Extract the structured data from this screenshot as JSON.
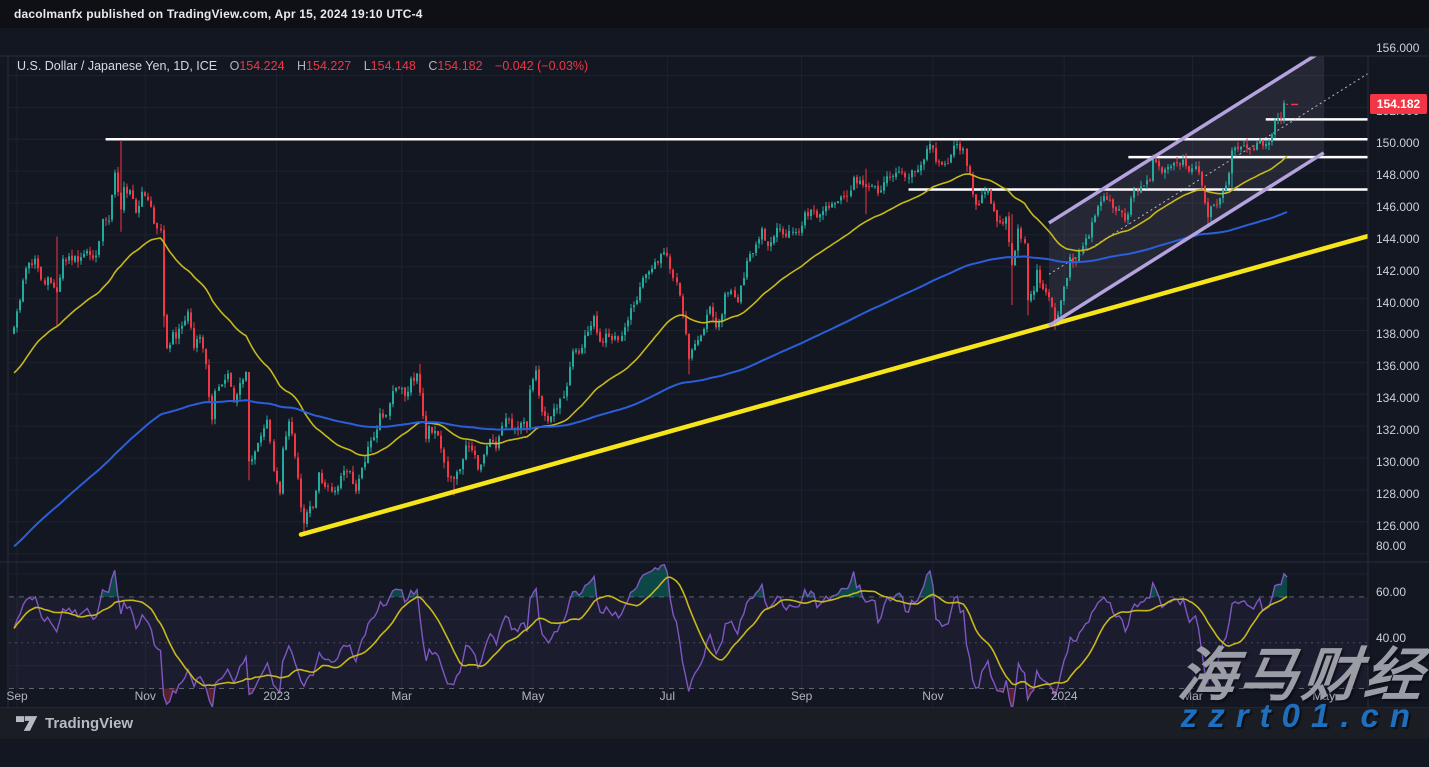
{
  "publisher_bar": {
    "text": "dacolmanfx published on TradingView.com, Apr 15, 2024 19:10 UTC-4"
  },
  "legend": {
    "symbol": "U.S. Dollar / Japanese Yen, 1D, ICE",
    "o_label": "O",
    "o_value": "154.224",
    "h_label": "H",
    "h_value": "154.227",
    "l_label": "L",
    "l_value": "154.148",
    "c_label": "C",
    "c_value": "154.182",
    "change": "−0.042 (−0.03%)"
  },
  "price_axis": {
    "ticks": [
      {
        "label": "156.000",
        "value": 156
      },
      {
        "label": "152.000",
        "value": 152
      },
      {
        "label": "150.000",
        "value": 150
      },
      {
        "label": "148.000",
        "value": 148
      },
      {
        "label": "146.000",
        "value": 146
      },
      {
        "label": "144.000",
        "value": 144
      },
      {
        "label": "142.000",
        "value": 142
      },
      {
        "label": "140.000",
        "value": 140
      },
      {
        "label": "138.000",
        "value": 138
      },
      {
        "label": "136.000",
        "value": 136
      },
      {
        "label": "134.000",
        "value": 134
      },
      {
        "label": "132.000",
        "value": 132
      },
      {
        "label": "130.000",
        "value": 130
      },
      {
        "label": "128.000",
        "value": 128
      },
      {
        "label": "126.000",
        "value": 126
      }
    ],
    "badge": {
      "text": "154.182",
      "value": 154.182,
      "bg": "#f23645"
    }
  },
  "rsi_axis": {
    "ticks": [
      {
        "label": "80.00",
        "value": 80
      },
      {
        "label": "60.00",
        "value": 60
      },
      {
        "label": "40.00",
        "value": 40
      }
    ]
  },
  "time_axis": {
    "labels": [
      {
        "text": "Sep",
        "day": 1
      },
      {
        "text": "Nov",
        "day": 43
      },
      {
        "text": "2023",
        "day": 86
      },
      {
        "text": "Mar",
        "day": 127
      },
      {
        "text": "May",
        "day": 170
      },
      {
        "text": "Jul",
        "day": 214
      },
      {
        "text": "Sep",
        "day": 258
      },
      {
        "text": "Nov",
        "day": 301
      },
      {
        "text": "2024",
        "day": 344
      },
      {
        "text": "Mar",
        "day": 386
      },
      {
        "text": "May",
        "day": 429
      }
    ]
  },
  "footer": {
    "brand": "TradingView"
  },
  "watermark": {
    "line1": "海马财经",
    "line2": "zzrt01.cn",
    "line1_color": "#9a9da6",
    "line2_color": "#1e6fbe"
  },
  "chart_data": {
    "type": "candlestick",
    "title": "U.S. Dollar / Japanese Yen, 1D, ICE",
    "ohlc_current": {
      "open": 154.224,
      "high": 154.227,
      "low": 154.148,
      "close": 154.182,
      "change": -0.042,
      "change_pct": -0.03
    },
    "ylim_main": [
      125.5,
      157.2
    ],
    "main_ticks": [
      156,
      152,
      150,
      148,
      146,
      144,
      142,
      140,
      138,
      136,
      134,
      132,
      130,
      128,
      126
    ],
    "main_grid_extra": [
      154
    ],
    "days_total": 418,
    "noise_seed": 20240415,
    "price_waypoints": [
      [
        0,
        140.2
      ],
      [
        4,
        143.9
      ],
      [
        7,
        144.5
      ],
      [
        9,
        143.2
      ],
      [
        12,
        143.0
      ],
      [
        14,
        142.4
      ],
      [
        16,
        144.5
      ],
      [
        19,
        144.4
      ],
      [
        22,
        144.6
      ],
      [
        24,
        145.0
      ],
      [
        27,
        144.7
      ],
      [
        29,
        147.0
      ],
      [
        31,
        146.9
      ],
      [
        33,
        149.9
      ],
      [
        35,
        147.6
      ],
      [
        36,
        149.0
      ],
      [
        38,
        148.8
      ],
      [
        40,
        147.4
      ],
      [
        42,
        148.7
      ],
      [
        44,
        148.2
      ],
      [
        46,
        146.7
      ],
      [
        48,
        146.3
      ],
      [
        49,
        140.9
      ],
      [
        50,
        138.9
      ],
      [
        52,
        139.9
      ],
      [
        53,
        139.5
      ],
      [
        55,
        140.3
      ],
      [
        57,
        141.2
      ],
      [
        59,
        138.9
      ],
      [
        61,
        139.6
      ],
      [
        63,
        137.9
      ],
      [
        65,
        134.4
      ],
      [
        66,
        136.2
      ],
      [
        68,
        136.6
      ],
      [
        70,
        137.3
      ],
      [
        72,
        135.5
      ],
      [
        74,
        136.7
      ],
      [
        76,
        137.4
      ],
      [
        77,
        131.8
      ],
      [
        79,
        132.4
      ],
      [
        81,
        133.4
      ],
      [
        83,
        134.4
      ],
      [
        85,
        131.2
      ],
      [
        87,
        129.8
      ],
      [
        88,
        132.6
      ],
      [
        90,
        134.3
      ],
      [
        92,
        132.1
      ],
      [
        94,
        128.9
      ],
      [
        95,
        127.9
      ],
      [
        96,
        128.6
      ],
      [
        98,
        128.9
      ],
      [
        100,
        131.1
      ],
      [
        102,
        130.2
      ],
      [
        104,
        129.9
      ],
      [
        106,
        130.2
      ],
      [
        108,
        131.2
      ],
      [
        110,
        131.2
      ],
      [
        112,
        129.9
      ],
      [
        114,
        131.4
      ],
      [
        116,
        132.7
      ],
      [
        118,
        133.3
      ],
      [
        120,
        134.8
      ],
      [
        122,
        134.7
      ],
      [
        124,
        136.2
      ],
      [
        126,
        136.4
      ],
      [
        128,
        135.9
      ],
      [
        130,
        137.0
      ],
      [
        132,
        137.3
      ],
      [
        133,
        136.1
      ],
      [
        135,
        133.2
      ],
      [
        136,
        134.0
      ],
      [
        138,
        133.7
      ],
      [
        140,
        132.6
      ],
      [
        142,
        130.8
      ],
      [
        144,
        130.7
      ],
      [
        146,
        131.3
      ],
      [
        148,
        132.8
      ],
      [
        150,
        132.5
      ],
      [
        152,
        131.3
      ],
      [
        154,
        132.2
      ],
      [
        156,
        133.2
      ],
      [
        158,
        132.6
      ],
      [
        160,
        134.0
      ],
      [
        162,
        134.4
      ],
      [
        164,
        133.9
      ],
      [
        166,
        134.2
      ],
      [
        168,
        133.9
      ],
      [
        169,
        136.3
      ],
      [
        171,
        137.5
      ],
      [
        173,
        134.9
      ],
      [
        175,
        134.3
      ],
      [
        177,
        135.1
      ],
      [
        179,
        135.7
      ],
      [
        181,
        136.5
      ],
      [
        183,
        138.7
      ],
      [
        185,
        138.6
      ],
      [
        187,
        139.7
      ],
      [
        189,
        140.3
      ],
      [
        190,
        140.9
      ],
      [
        192,
        139.3
      ],
      [
        194,
        139.8
      ],
      [
        196,
        139.4
      ],
      [
        198,
        139.4
      ],
      [
        200,
        140.2
      ],
      [
        202,
        141.4
      ],
      [
        204,
        141.9
      ],
      [
        206,
        143.3
      ],
      [
        208,
        143.7
      ],
      [
        210,
        144.3
      ],
      [
        212,
        144.8
      ],
      [
        214,
        144.7
      ],
      [
        216,
        143.3
      ],
      [
        218,
        142.2
      ],
      [
        220,
        139.8
      ],
      [
        221,
        138.2
      ],
      [
        222,
        138.8
      ],
      [
        224,
        139.4
      ],
      [
        226,
        140.1
      ],
      [
        228,
        141.5
      ],
      [
        230,
        140.2
      ],
      [
        232,
        141.0
      ],
      [
        233,
        142.3
      ],
      [
        235,
        142.5
      ],
      [
        237,
        141.8
      ],
      [
        239,
        143.3
      ],
      [
        241,
        144.8
      ],
      [
        243,
        145.4
      ],
      [
        245,
        146.4
      ],
      [
        247,
        145.3
      ],
      [
        249,
        145.9
      ],
      [
        251,
        146.4
      ],
      [
        253,
        145.9
      ],
      [
        255,
        146.2
      ],
      [
        257,
        146.2
      ],
      [
        259,
        147.4
      ],
      [
        261,
        147.6
      ],
      [
        263,
        147.1
      ],
      [
        265,
        147.5
      ],
      [
        267,
        147.7
      ],
      [
        269,
        148.0
      ],
      [
        271,
        148.4
      ],
      [
        273,
        148.4
      ],
      [
        275,
        149.6
      ],
      [
        277,
        149.4
      ],
      [
        279,
        149.0
      ],
      [
        281,
        149.1
      ],
      [
        283,
        148.6
      ],
      [
        285,
        149.3
      ],
      [
        287,
        149.6
      ],
      [
        289,
        149.9
      ],
      [
        291,
        149.9
      ],
      [
        293,
        149.6
      ],
      [
        295,
        150.0
      ],
      [
        297,
        150.4
      ],
      [
        299,
        151.4
      ],
      [
        300,
        151.7
      ],
      [
        302,
        150.6
      ],
      [
        304,
        150.4
      ],
      [
        306,
        150.5
      ],
      [
        308,
        151.6
      ],
      [
        309,
        151.7
      ],
      [
        311,
        151.4
      ],
      [
        313,
        149.8
      ],
      [
        315,
        147.9
      ],
      [
        317,
        148.5
      ],
      [
        319,
        148.9
      ],
      [
        321,
        147.5
      ],
      [
        323,
        146.8
      ],
      [
        325,
        147.1
      ],
      [
        327,
        144.1
      ],
      [
        328,
        145.0
      ],
      [
        329,
        146.4
      ],
      [
        331,
        145.5
      ],
      [
        332,
        141.9
      ],
      [
        334,
        142.5
      ],
      [
        335,
        143.8
      ],
      [
        337,
        142.6
      ],
      [
        338,
        142.4
      ],
      [
        340,
        141.5
      ],
      [
        341,
        140.4
      ],
      [
        342,
        141.0
      ],
      [
        343,
        141.9
      ],
      [
        345,
        143.3
      ],
      [
        346,
        144.6
      ],
      [
        348,
        144.3
      ],
      [
        350,
        145.3
      ],
      [
        352,
        145.9
      ],
      [
        354,
        147.2
      ],
      [
        356,
        148.1
      ],
      [
        358,
        148.2
      ],
      [
        360,
        147.7
      ],
      [
        362,
        147.6
      ],
      [
        364,
        146.9
      ],
      [
        366,
        148.3
      ],
      [
        368,
        148.7
      ],
      [
        370,
        149.1
      ],
      [
        372,
        149.4
      ],
      [
        373,
        150.8
      ],
      [
        375,
        150.3
      ],
      [
        377,
        150.1
      ],
      [
        379,
        150.3
      ],
      [
        381,
        150.5
      ],
      [
        383,
        150.7
      ],
      [
        385,
        150.0
      ],
      [
        387,
        150.3
      ],
      [
        389,
        149.1
      ],
      [
        391,
        147.1
      ],
      [
        393,
        147.9
      ],
      [
        395,
        148.3
      ],
      [
        397,
        149.1
      ],
      [
        399,
        151.3
      ],
      [
        401,
        151.4
      ],
      [
        403,
        151.6
      ],
      [
        405,
        151.4
      ],
      [
        407,
        151.7
      ],
      [
        409,
        151.6
      ],
      [
        411,
        151.8
      ],
      [
        412,
        152.3
      ],
      [
        413,
        153.2
      ],
      [
        414,
        153.3
      ],
      [
        415,
        153.3
      ],
      [
        416,
        154.27
      ],
      [
        417,
        154.182
      ]
    ],
    "wick_overrides": [
      [
        14,
        145.9,
        140.3
      ],
      [
        35,
        151.95,
        146.2
      ],
      [
        49,
        146.6,
        140.2
      ],
      [
        77,
        137.4,
        130.6
      ],
      [
        95,
        0,
        127.23
      ],
      [
        133,
        137.91,
        0
      ],
      [
        144,
        0,
        129.64
      ],
      [
        221,
        0,
        137.25
      ],
      [
        279,
        150.16,
        147.3
      ],
      [
        309,
        151.91,
        0
      ],
      [
        327,
        147.3,
        141.6
      ],
      [
        332,
        0,
        140.95
      ],
      [
        391,
        0,
        146.48
      ],
      [
        399,
        0,
        148.9
      ],
      [
        416,
        154.45,
        153.0
      ],
      [
        417,
        154.227,
        154.148
      ]
    ],
    "moving_averages": [
      {
        "name": "ma-fast-yellow",
        "k": 0.048,
        "init": 137.2,
        "color": "#c7b81a",
        "width": 1.6
      },
      {
        "name": "ma-slow-blue",
        "k": 0.0115,
        "init": 126.3,
        "color": "#2b5ed9",
        "width": 2
      }
    ],
    "rsi": {
      "period": 14,
      "ma_period": 14,
      "seed_gain": 0.45,
      "seed_loss": 0.35,
      "levels_dashed": [
        70,
        50,
        30
      ],
      "band": [
        30,
        70
      ],
      "ticks": [
        80,
        60,
        40
      ],
      "line_color": "#7e57c2",
      "ma_color": "#c7b81a",
      "band_fill": "rgba(126,87,194,0.09)",
      "overbought_fill": "rgba(8,153,129,0.38)",
      "oversold_fill": "rgba(242,54,69,0.30)"
    },
    "drawings": {
      "hlines": [
        {
          "price": 152.0,
          "from_day": 30,
          "to_day": 444
        },
        {
          "price": 153.25,
          "from_day": 410,
          "to_day": 444
        },
        {
          "price": 150.88,
          "from_day": 365,
          "to_day": 444
        },
        {
          "price": 148.85,
          "from_day": 293,
          "to_day": 444
        }
      ],
      "hline_color": "#ffffff",
      "trendline": {
        "from": [
          94,
          127.2
        ],
        "to": [
          444,
          145.95
        ],
        "color": "#f7e51b",
        "width": 4.5
      },
      "channel": {
        "lower_from": [
          339,
          140.3
        ],
        "lower_to": [
          429,
          151.15
        ],
        "offset_units": 6.45,
        "color": "#b5a3dd",
        "width": 3.5,
        "fill": "rgba(196,184,230,0.10)",
        "mid_dotted_to_day": 444,
        "mid_color": "rgba(209,212,220,0.85)"
      },
      "last_price_dash": {
        "price": 154.182,
        "color": "#f23645"
      }
    },
    "colors": {
      "up": "#22ab9d",
      "down": "#f23645",
      "grid": "#1e222d",
      "frame": "#2a2e39",
      "background": "#131722"
    }
  }
}
